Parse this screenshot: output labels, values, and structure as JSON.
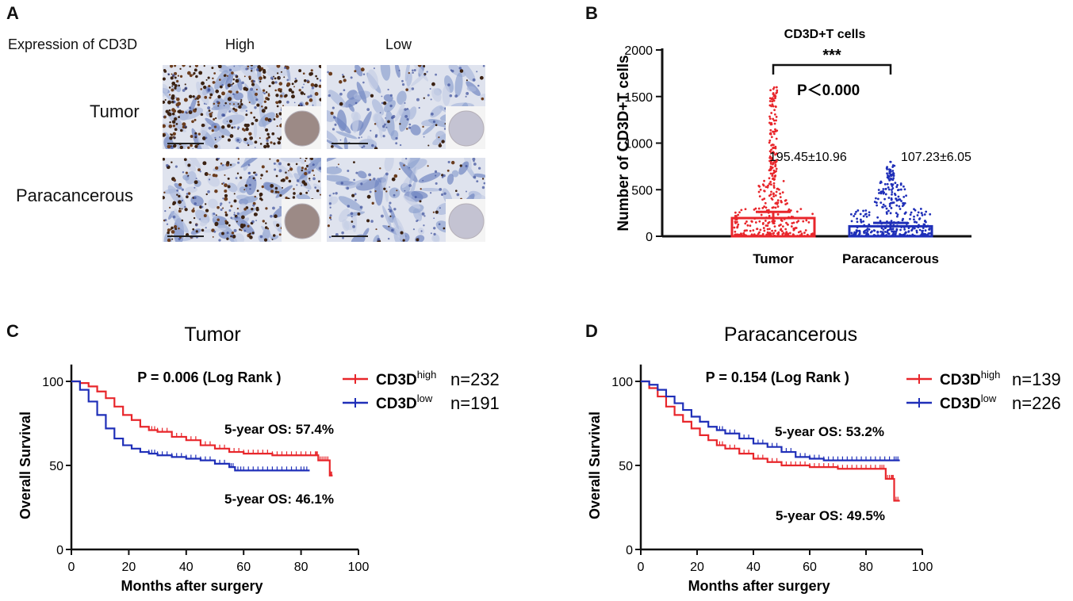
{
  "panels": {
    "a": "A",
    "b": "B",
    "c": "C",
    "d": "D"
  },
  "panelA": {
    "expression_label": "Expression of CD3D",
    "col_high": "High",
    "col_low": "Low",
    "row_tumor": "Tumor",
    "row_para": "Paracancerous",
    "images": [
      {
        "name": "tumor-high-ihc-image",
        "row": "tumor",
        "col": "high",
        "intensity": 0.85
      },
      {
        "name": "tumor-low-ihc-image",
        "row": "tumor",
        "col": "low",
        "intensity": 0.1
      },
      {
        "name": "para-high-ihc-image",
        "row": "para",
        "col": "high",
        "intensity": 0.55
      },
      {
        "name": "para-low-ihc-image",
        "row": "para",
        "col": "low",
        "intensity": 0.12
      }
    ]
  },
  "chart_data": [
    {
      "id": "B",
      "type": "bar",
      "title": "CD3D+T cells",
      "ylabel": "Number of CD3D+T cells",
      "xlabel": "",
      "ylim": [
        0,
        2000
      ],
      "yticks": [
        0,
        500,
        1000,
        1500,
        2000
      ],
      "categories": [
        "Tumor",
        "Paracancerous"
      ],
      "values": [
        195.45,
        107.23
      ],
      "errors": [
        10.96,
        6.05
      ],
      "colors": [
        "#e8262b",
        "#1f2fb8"
      ],
      "value_labels": [
        "195.45±10.96",
        "107.23±6.05"
      ],
      "significance": "***",
      "pvalue": "P＜0.000",
      "max_points": [
        1600,
        800
      ]
    },
    {
      "id": "C",
      "type": "line",
      "title": "Tumor",
      "xlabel": "Months after surgery",
      "ylabel": "Overall Survival",
      "xlim": [
        0,
        100
      ],
      "ylim": [
        0,
        100
      ],
      "xticks": [
        0,
        20,
        40,
        60,
        80,
        100
      ],
      "yticks": [
        0,
        50,
        100
      ],
      "pvalue": "P = 0.006 (Log Rank )",
      "series": [
        {
          "name": "CD3D",
          "sup": "high",
          "n": "n=232",
          "color": "#e8262b",
          "x": [
            0,
            3,
            6,
            9,
            12,
            15,
            18,
            21,
            24,
            27,
            30,
            35,
            40,
            45,
            50,
            55,
            60,
            65,
            70,
            75,
            80,
            85,
            86,
            88,
            90,
            91
          ],
          "y": [
            100,
            99,
            97,
            94,
            90,
            85,
            80,
            77,
            73,
            71,
            70,
            67,
            65,
            62,
            60,
            58,
            57,
            57,
            56,
            56,
            56,
            56,
            53,
            53,
            44,
            44
          ]
        },
        {
          "name": "CD3D",
          "sup": "low",
          "n": "n=191",
          "color": "#1f2fb8",
          "x": [
            0,
            3,
            6,
            9,
            12,
            15,
            18,
            21,
            24,
            27,
            30,
            35,
            40,
            45,
            50,
            55,
            57,
            60,
            65,
            70,
            75,
            80,
            83
          ],
          "y": [
            100,
            95,
            88,
            80,
            72,
            66,
            62,
            60,
            58,
            57,
            56,
            55,
            54,
            53,
            51,
            49,
            47,
            47,
            47,
            47,
            47,
            47,
            47
          ]
        }
      ],
      "annotations": [
        "5-year OS: 57.4%",
        "5-year OS: 46.1%"
      ]
    },
    {
      "id": "D",
      "type": "line",
      "title": "Paracancerous",
      "xlabel": "Months after surgery",
      "ylabel": "Overall Survival",
      "xlim": [
        0,
        100
      ],
      "ylim": [
        0,
        100
      ],
      "xticks": [
        0,
        20,
        40,
        60,
        80,
        100
      ],
      "yticks": [
        0,
        50,
        100
      ],
      "pvalue": "P = 0.154 (Log Rank )",
      "series": [
        {
          "name": "CD3D",
          "sup": "high",
          "n": "n=139",
          "color": "#e8262b",
          "x": [
            0,
            3,
            6,
            9,
            12,
            15,
            18,
            21,
            24,
            27,
            30,
            35,
            40,
            45,
            50,
            55,
            60,
            65,
            70,
            75,
            80,
            85,
            87,
            89,
            90,
            92
          ],
          "y": [
            100,
            96,
            91,
            85,
            80,
            76,
            72,
            68,
            65,
            62,
            60,
            57,
            54,
            52,
            50,
            50,
            49,
            49,
            48,
            48,
            48,
            48,
            42,
            42,
            29,
            29
          ]
        },
        {
          "name": "CD3D",
          "sup": "low",
          "n": "n=226",
          "color": "#1f2fb8",
          "x": [
            0,
            3,
            6,
            9,
            12,
            15,
            18,
            21,
            24,
            27,
            30,
            35,
            40,
            45,
            50,
            55,
            60,
            65,
            70,
            75,
            80,
            85,
            90,
            92
          ],
          "y": [
            100,
            98,
            95,
            91,
            87,
            83,
            79,
            76,
            73,
            71,
            69,
            66,
            63,
            61,
            58,
            55,
            54,
            53,
            53,
            53,
            53,
            53,
            53,
            53
          ]
        }
      ],
      "annotations": [
        "5-year OS: 53.2%",
        "5-year OS: 49.5%"
      ]
    }
  ]
}
